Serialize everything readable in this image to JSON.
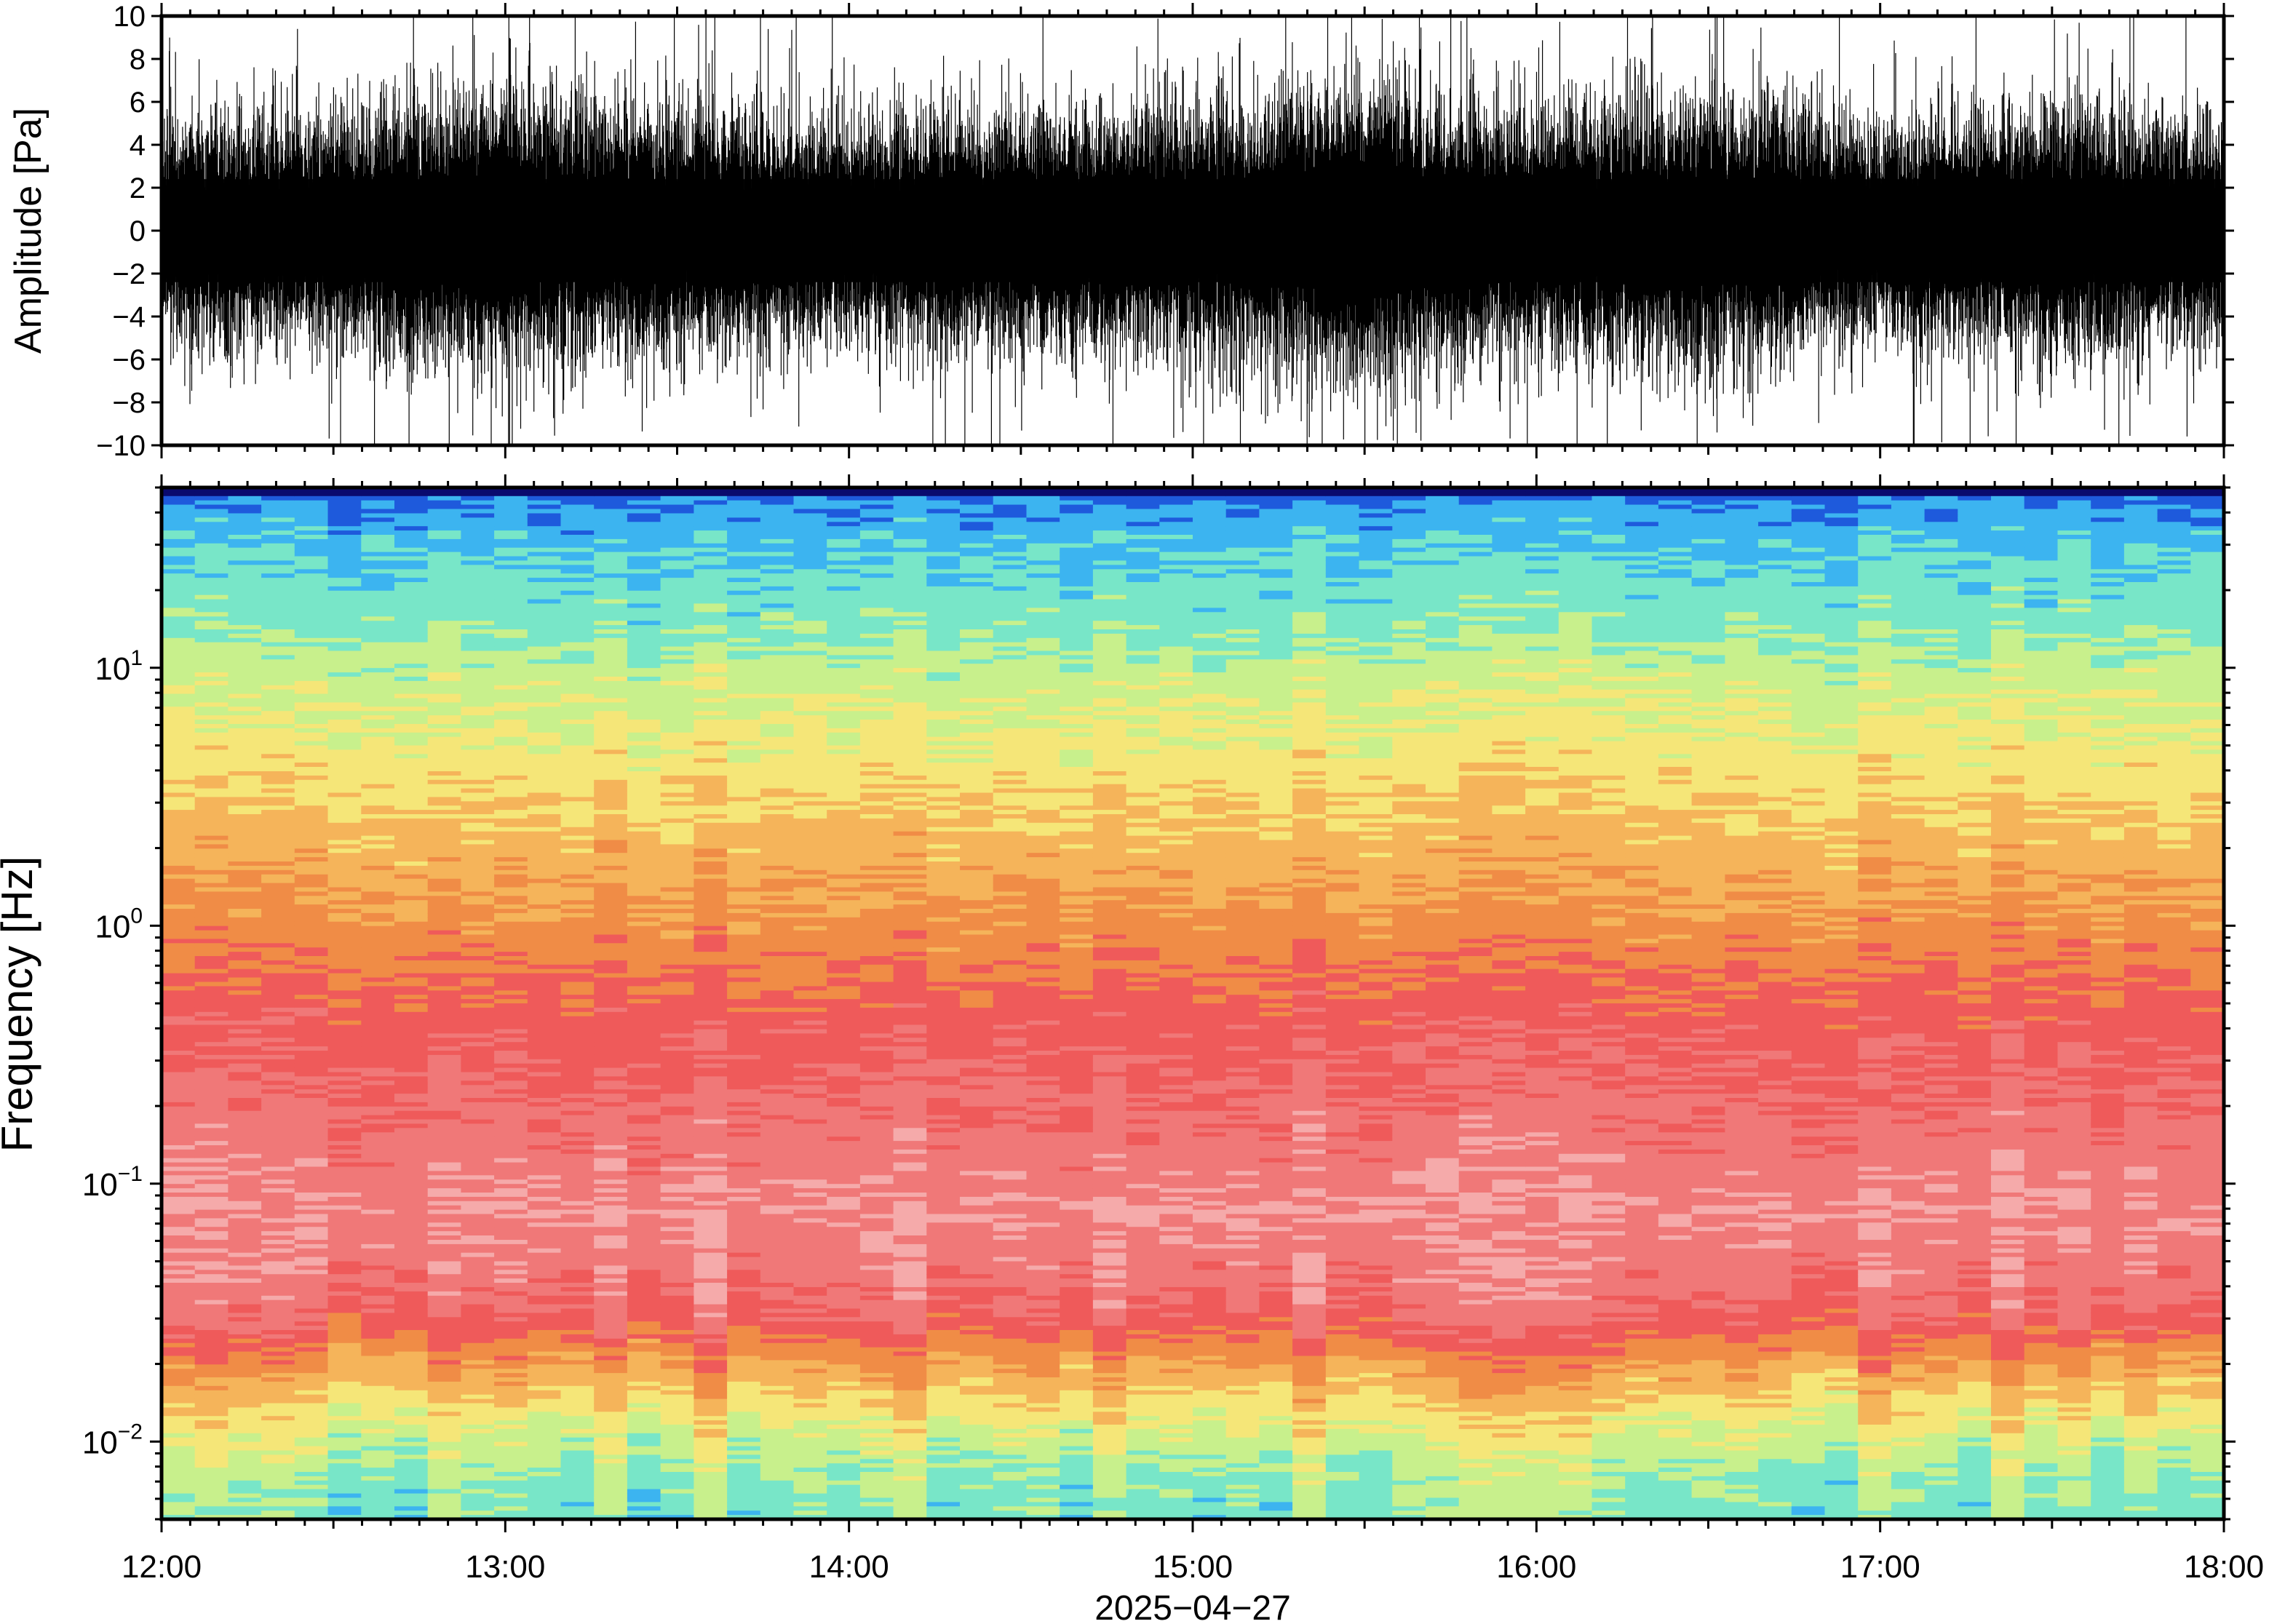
{
  "chart_data": [
    {
      "type": "line",
      "panel": "waveform",
      "title": "",
      "xlabel": "",
      "ylabel": "Amplitude [Pa]",
      "ylim": [
        -10,
        10
      ],
      "yticks": [
        -10,
        -8,
        -6,
        -4,
        -2,
        0,
        2,
        4,
        6,
        8,
        10
      ],
      "ytick_labels": [
        "−10",
        "−8",
        "−6",
        "−4",
        "−2",
        "0",
        "2",
        "4",
        "6",
        "8",
        "10"
      ],
      "xlim": [
        "12:00",
        "18:00"
      ],
      "x_major_ticks": [
        "12:00",
        "13:00",
        "14:00",
        "15:00",
        "16:00",
        "17:00",
        "18:00"
      ],
      "series": [
        {
          "color": "#000000",
          "envelope_hours": [
            12.0,
            12.5,
            13.0,
            13.5,
            14.0,
            14.5,
            15.0,
            15.5,
            16.0,
            16.5,
            17.0,
            17.5,
            18.0
          ],
          "envelope_pa": [
            2.0,
            2.1,
            2.6,
            2.2,
            2.0,
            2.2,
            2.3,
            2.8,
            2.2,
            2.5,
            2.0,
            2.3,
            2.0
          ]
        }
      ],
      "grid": false
    },
    {
      "type": "heatmap",
      "panel": "spectrogram",
      "title": "",
      "xlabel": "2025−04−27",
      "ylabel": "Frequency [Hz]",
      "yscale": "log",
      "ylim": [
        0.005,
        50
      ],
      "ytick_labels": [
        {
          "value": 10,
          "base": "10",
          "exp": "1"
        },
        {
          "value": 1,
          "base": "10",
          "exp": "0"
        },
        {
          "value": 0.1,
          "base": "10",
          "exp": "−1"
        },
        {
          "value": 0.01,
          "base": "10",
          "exp": "−2"
        }
      ],
      "xlim": [
        "12:00",
        "18:00"
      ],
      "x_major_ticks": [
        "12:00",
        "13:00",
        "14:00",
        "15:00",
        "16:00",
        "17:00",
        "18:00"
      ],
      "colormap": [
        "#0a0a6e",
        "#1e5adc",
        "#3cb4f0",
        "#78e6c8",
        "#c8f08c",
        "#f5e678",
        "#f5b45a",
        "#f08c46",
        "#ef5a5a",
        "#f07878",
        "#f5aaaa"
      ],
      "grid": false
    }
  ]
}
